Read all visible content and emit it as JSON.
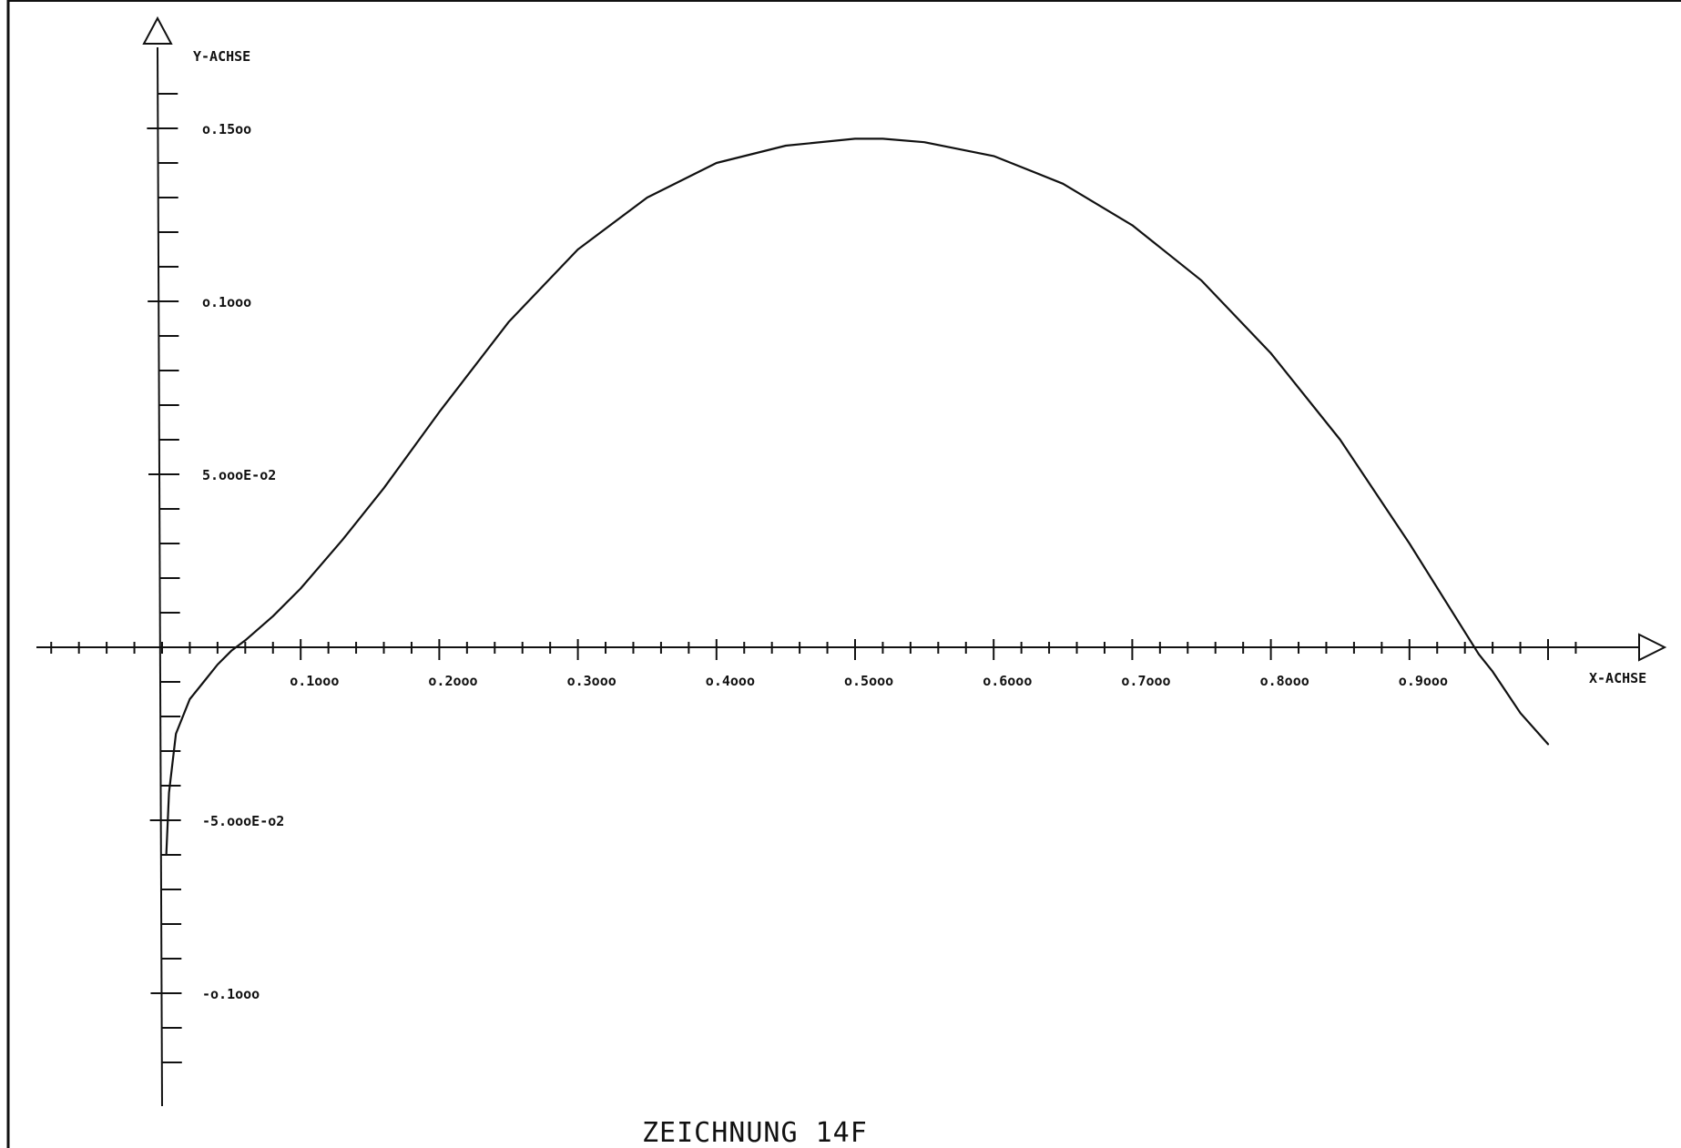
{
  "chart_data": {
    "type": "line",
    "title": "ZEICHNUNG 14F",
    "xlabel": "X-ACHSE",
    "ylabel": "Y-ACHSE",
    "xlim": [
      -0.09,
      1.05
    ],
    "ylim": [
      -0.133,
      0.163
    ],
    "grid": false,
    "legend": "none",
    "x_ticks": [
      {
        "value": 0.1,
        "label": "o.1ooo"
      },
      {
        "value": 0.2,
        "label": "o.2ooo"
      },
      {
        "value": 0.3,
        "label": "o.3ooo"
      },
      {
        "value": 0.4,
        "label": "o.4ooo"
      },
      {
        "value": 0.5,
        "label": "o.5ooo"
      },
      {
        "value": 0.6,
        "label": "o.6ooo"
      },
      {
        "value": 0.7,
        "label": "o.7ooo"
      },
      {
        "value": 0.8,
        "label": "o.8ooo"
      },
      {
        "value": 0.9,
        "label": "o.9ooo"
      }
    ],
    "y_ticks": [
      {
        "value": 0.15,
        "label": "o.15oo"
      },
      {
        "value": 0.1,
        "label": "o.1ooo"
      },
      {
        "value": 0.05,
        "label": "5.oooE-o2"
      },
      {
        "value": -0.05,
        "label": "-5.oooE-o2"
      },
      {
        "value": -0.1,
        "label": "-o.1ooo"
      }
    ],
    "series": [
      {
        "x": [
          0.003,
          0.005,
          0.01,
          0.02,
          0.03,
          0.04,
          0.05,
          0.06,
          0.08,
          0.1,
          0.13,
          0.16,
          0.2,
          0.25,
          0.3,
          0.35,
          0.4,
          0.45,
          0.5,
          0.52,
          0.55,
          0.6,
          0.65,
          0.7,
          0.75,
          0.8,
          0.85,
          0.9,
          0.95,
          0.96,
          0.98,
          1.0
        ],
        "y": [
          -0.06,
          -0.042,
          -0.025,
          -0.015,
          -0.01,
          -0.005,
          -0.001,
          0.002,
          0.009,
          0.017,
          0.031,
          0.046,
          0.068,
          0.094,
          0.115,
          0.13,
          0.14,
          0.145,
          0.147,
          0.147,
          0.146,
          0.142,
          0.134,
          0.122,
          0.106,
          0.085,
          0.06,
          0.03,
          -0.002,
          -0.007,
          -0.019,
          -0.028
        ]
      }
    ]
  }
}
